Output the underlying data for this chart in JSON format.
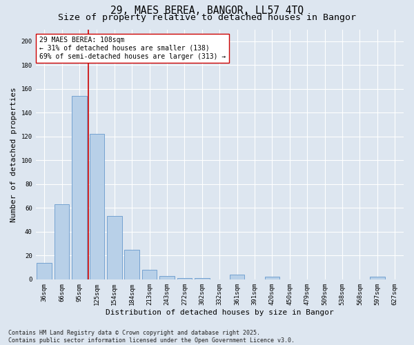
{
  "title": "29, MAES BEREA, BANGOR, LL57 4TQ",
  "subtitle": "Size of property relative to detached houses in Bangor",
  "xlabel": "Distribution of detached houses by size in Bangor",
  "ylabel": "Number of detached properties",
  "categories": [
    "36sqm",
    "66sqm",
    "95sqm",
    "125sqm",
    "154sqm",
    "184sqm",
    "213sqm",
    "243sqm",
    "272sqm",
    "302sqm",
    "332sqm",
    "361sqm",
    "391sqm",
    "420sqm",
    "450sqm",
    "479sqm",
    "509sqm",
    "538sqm",
    "568sqm",
    "597sqm",
    "627sqm"
  ],
  "values": [
    14,
    63,
    154,
    122,
    53,
    25,
    8,
    3,
    1,
    1,
    0,
    4,
    0,
    2,
    0,
    0,
    0,
    0,
    0,
    2,
    0
  ],
  "bar_color": "#b8d0e8",
  "bar_edge_color": "#6699cc",
  "background_color": "#dde6f0",
  "grid_color": "#ffffff",
  "vline_x_index": 2.5,
  "vline_color": "#cc0000",
  "annotation_text": "29 MAES BEREA: 108sqm\n← 31% of detached houses are smaller (138)\n69% of semi-detached houses are larger (313) →",
  "annotation_box_facecolor": "#ffffff",
  "annotation_box_edgecolor": "#cc0000",
  "ylim": [
    0,
    210
  ],
  "yticks": [
    0,
    20,
    40,
    60,
    80,
    100,
    120,
    140,
    160,
    180,
    200
  ],
  "title_fontsize": 10.5,
  "subtitle_fontsize": 9.5,
  "axis_label_fontsize": 8,
  "tick_fontsize": 6.5,
  "annotation_fontsize": 7,
  "footer_fontsize": 6,
  "footer_text": "Contains HM Land Registry data © Crown copyright and database right 2025.\nContains public sector information licensed under the Open Government Licence v3.0."
}
